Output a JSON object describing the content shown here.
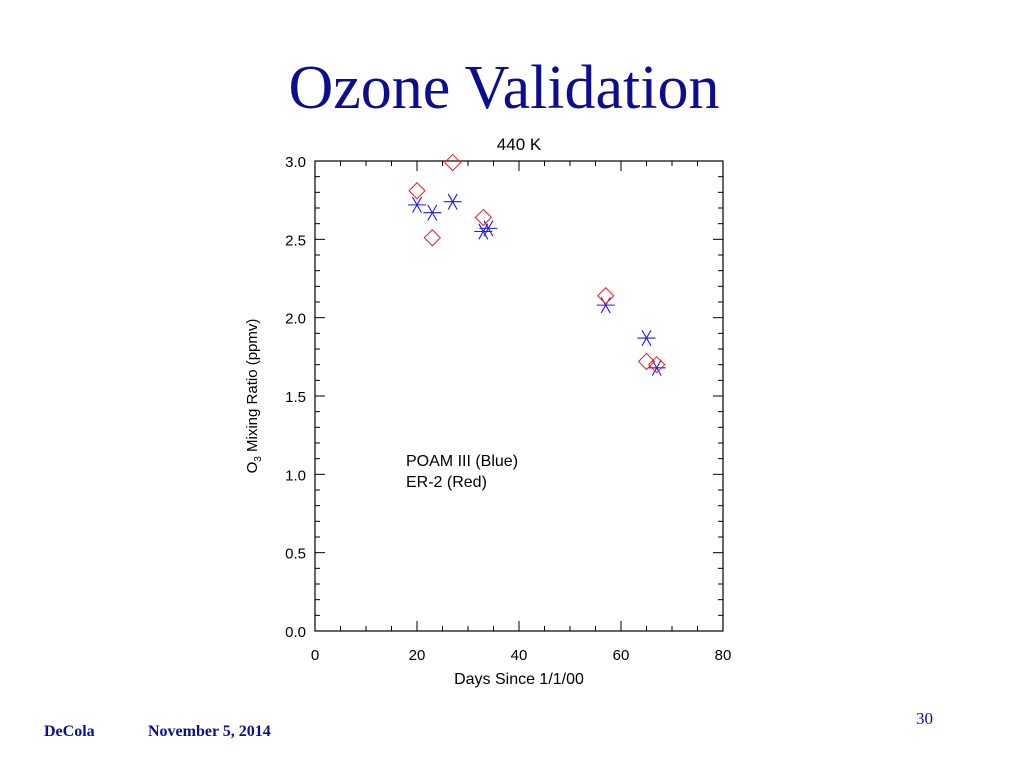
{
  "slide": {
    "title": "Ozone Validation",
    "footer_author": "DeCola",
    "footer_date": "November 5, 2014",
    "slide_number": "30"
  },
  "chart_data": {
    "type": "scatter",
    "title": "440 K",
    "xlabel": "Days Since 1/1/00",
    "ylabel_main": "O",
    "ylabel_sub": "3",
    "ylabel_rest": " Mixing Ratio (ppmv)",
    "xlim": [
      0,
      80
    ],
    "ylim": [
      0.0,
      3.0
    ],
    "xticks": [
      0,
      20,
      40,
      60,
      80
    ],
    "xtick_labels": [
      "0",
      "20",
      "40",
      "60",
      "80"
    ],
    "yticks": [
      0.0,
      0.5,
      1.0,
      1.5,
      2.0,
      2.5,
      3.0
    ],
    "ytick_labels": [
      "0.0",
      "0.5",
      "1.0",
      "1.5",
      "2.0",
      "2.5",
      "3.0"
    ],
    "grid": false,
    "legend_lines": [
      "POAM III (Blue)",
      "ER-2 (Red)"
    ],
    "series": [
      {
        "name": "POAM III (Blue)",
        "color": "#1a1aff",
        "marker": "asterisk",
        "points": [
          {
            "x": 20,
            "y": 2.72
          },
          {
            "x": 23,
            "y": 2.67
          },
          {
            "x": 27,
            "y": 2.74
          },
          {
            "x": 33,
            "y": 2.55
          },
          {
            "x": 34,
            "y": 2.57
          },
          {
            "x": 57,
            "y": 2.08
          },
          {
            "x": 65,
            "y": 1.87
          },
          {
            "x": 67,
            "y": 1.68
          }
        ]
      },
      {
        "name": "ER-2 (Red)",
        "color": "#e82020",
        "marker": "diamond",
        "points": [
          {
            "x": 20,
            "y": 2.81
          },
          {
            "x": 27,
            "y": 2.99
          },
          {
            "x": 23,
            "y": 2.51
          },
          {
            "x": 33,
            "y": 2.64
          },
          {
            "x": 57,
            "y": 2.14
          },
          {
            "x": 65,
            "y": 1.72
          },
          {
            "x": 67,
            "y": 1.7
          }
        ]
      }
    ]
  }
}
